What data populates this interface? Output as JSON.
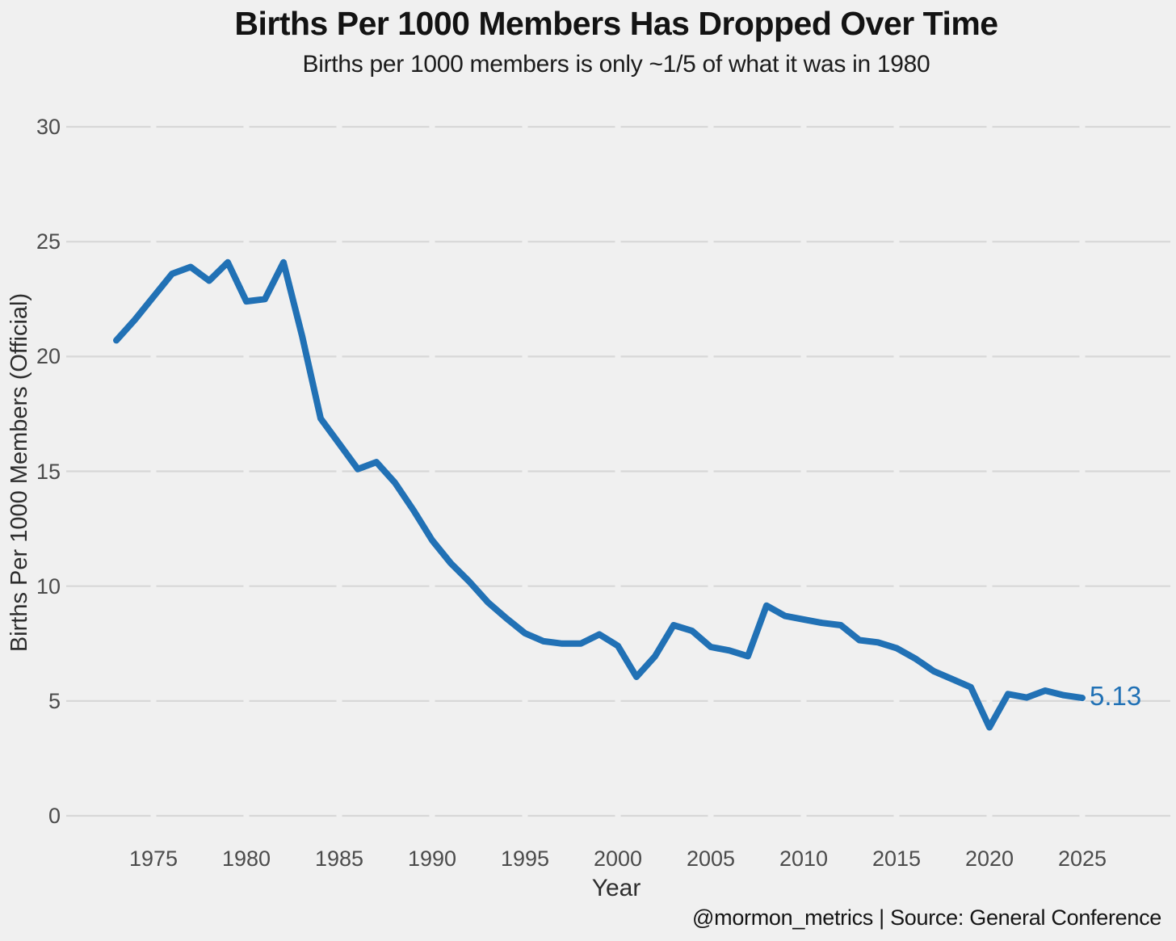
{
  "chart_data": {
    "type": "line",
    "title": "Births Per 1000 Members Has Dropped Over Time",
    "subtitle": "Births per 1000 members is only ~1/5 of what it was in 1980",
    "xlabel": "Year",
    "ylabel": "Births Per 1000 Members (Official)",
    "series_name": "Births per 1000 members (Official)",
    "x": [
      1973,
      1974,
      1975,
      1976,
      1977,
      1978,
      1979,
      1980,
      1981,
      1982,
      1983,
      1984,
      1985,
      1986,
      1987,
      1988,
      1989,
      1990,
      1991,
      1992,
      1993,
      1994,
      1995,
      1996,
      1997,
      1998,
      1999,
      2000,
      2001,
      2002,
      2003,
      2004,
      2005,
      2006,
      2007,
      2008,
      2009,
      2010,
      2011,
      2012,
      2013,
      2014,
      2015,
      2016,
      2017,
      2018,
      2019,
      2020,
      2021,
      2022,
      2023,
      2024,
      2025
    ],
    "values": [
      20.7,
      21.6,
      22.6,
      23.6,
      23.9,
      23.3,
      24.1,
      22.4,
      22.5,
      24.1,
      20.9,
      17.3,
      16.2,
      15.1,
      15.4,
      14.5,
      13.3,
      12.0,
      11.0,
      10.2,
      9.3,
      8.6,
      7.95,
      7.6,
      7.5,
      7.5,
      7.9,
      7.4,
      6.05,
      6.95,
      8.3,
      8.05,
      7.35,
      7.2,
      6.95,
      9.15,
      8.7,
      8.55,
      8.4,
      8.3,
      7.65,
      7.55,
      7.3,
      6.85,
      6.3,
      5.95,
      5.6,
      3.85,
      5.3,
      5.15,
      5.45,
      5.25,
      5.13
    ],
    "x_ticks": [
      1975,
      1980,
      1985,
      1990,
      1995,
      2000,
      2005,
      2010,
      2015,
      2020,
      2025
    ],
    "y_ticks": [
      0,
      5,
      10,
      15,
      20,
      25,
      30
    ],
    "ylim": [
      0,
      30
    ],
    "end_label": "5.13",
    "grid": "horizontal",
    "legend_position": "none"
  },
  "footer": {
    "attribution": "@mormon_metrics | Source: General Conference"
  },
  "colors": {
    "line": "#2171b5",
    "background": "#f0f0f0",
    "gridline": "#d7d7d7",
    "end_label": "#2171b5"
  }
}
